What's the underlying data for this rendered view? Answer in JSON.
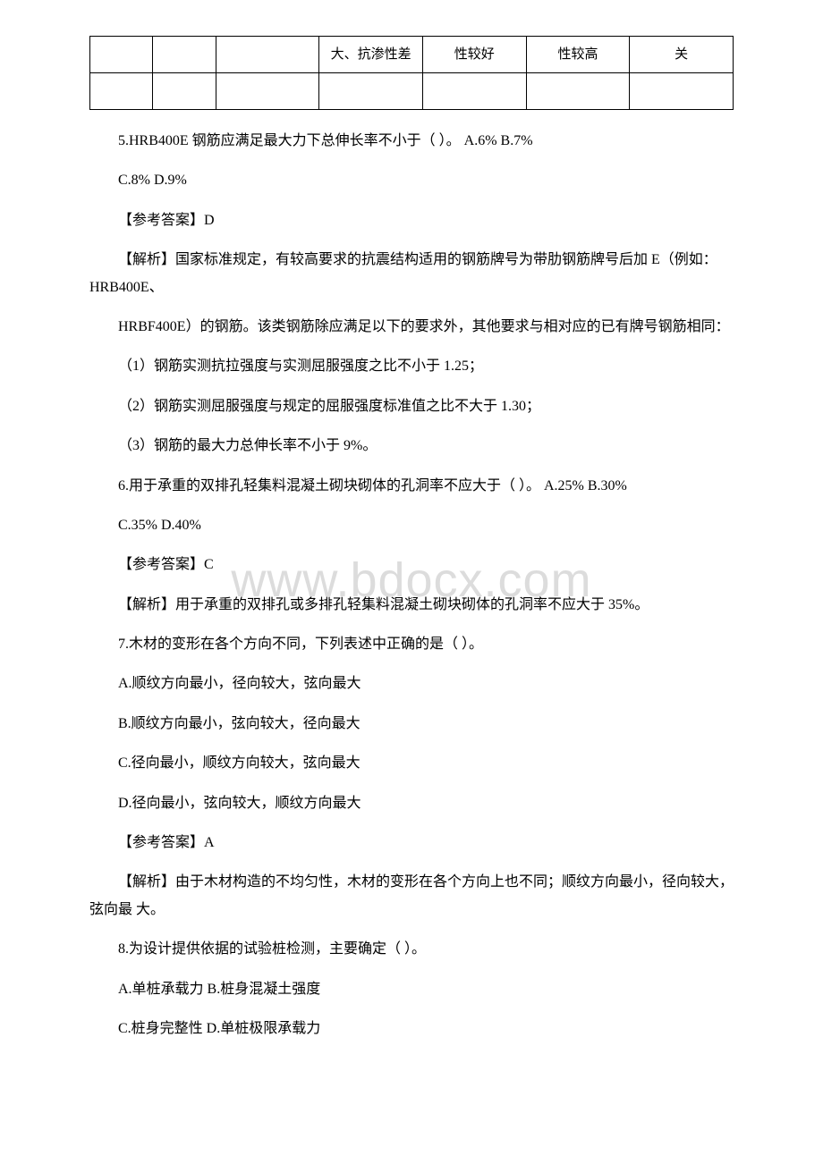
{
  "watermark": "www.bdocx.com",
  "table": {
    "row1": {
      "c1": "",
      "c2": "",
      "c3": "",
      "c4": "大、抗渗性差",
      "c5": "性较好",
      "c6": "性较高",
      "c7": "关"
    }
  },
  "q5": {
    "stem": "5.HRB400E 钢筋应满足最大力下总伸长率不小于（ ）。 A.6% B.7%",
    "line2": "C.8% D.9%",
    "answer": "【参考答案】D",
    "explain1": "【解析】国家标准规定，有较高要求的抗震结构适用的钢筋牌号为带肋钢筋牌号后加 E（例如：HRB400E、",
    "explain2": "HRBF400E）的钢筋。该类钢筋除应满足以下的要求外，其他要求与相对应的已有牌号钢筋相同：",
    "item1": "（1）钢筋实测抗拉强度与实测屈服强度之比不小于 1.25；",
    "item2": "（2）钢筋实测屈服强度与规定的屈服强度标准值之比不大于 1.30；",
    "item3": "（3）钢筋的最大力总伸长率不小于 9%。"
  },
  "q6": {
    "stem": "6.用于承重的双排孔轻集料混凝土砌块砌体的孔洞率不应大于（ ）。 A.25% B.30%",
    "line2": "C.35% D.40%",
    "answer": "【参考答案】C",
    "explain": "【解析】用于承重的双排孔或多排孔轻集料混凝土砌块砌体的孔洞率不应大于 35%。"
  },
  "q7": {
    "stem": "7.木材的变形在各个方向不同，下列表述中正确的是（ ）。",
    "optA": "A.顺纹方向最小，径向较大，弦向最大",
    "optB": "B.顺纹方向最小，弦向较大，径向最大",
    "optC": "C.径向最小，顺纹方向较大，弦向最大",
    "optD": "D.径向最小，弦向较大，顺纹方向最大",
    "answer": "【参考答案】A",
    "explain": "【解析】由于木材构造的不均匀性，木材的变形在各个方向上也不同；顺纹方向最小，径向较大，弦向最 大。"
  },
  "q8": {
    "stem": "8.为设计提供依据的试验桩检测，主要确定（ ）。",
    "optAB": "A.单桩承载力 B.桩身混凝土强度",
    "optCD": "C.桩身完整性 D.单桩极限承载力"
  }
}
